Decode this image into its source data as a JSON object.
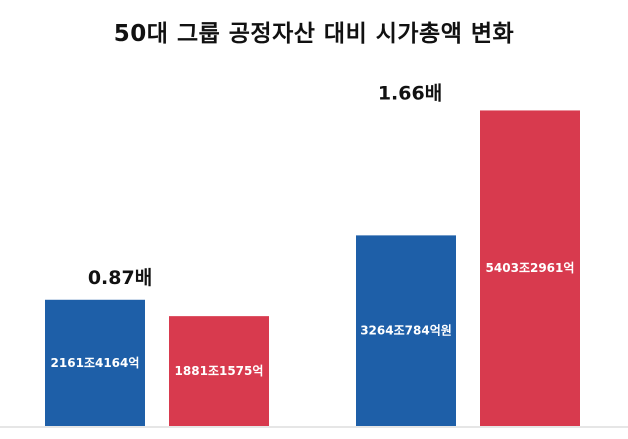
{
  "chart_data": {
    "type": "bar",
    "title": "50대 그룹 공정자산 대비 시가총액 변화",
    "ylim": [
      0,
      6000
    ],
    "grid": false,
    "groups": [
      {
        "ratio_label": "0.87배",
        "bars": [
          {
            "label": "2161조4164억",
            "value": 2161.4164,
            "color": "#1e5fa8"
          },
          {
            "label": "1881조1575억",
            "value": 1881.1575,
            "color": "#d83a4e"
          }
        ]
      },
      {
        "ratio_label": "1.66배",
        "bars": [
          {
            "label": "3264조784억원",
            "value": 3264.0784,
            "color": "#1e5fa8"
          },
          {
            "label": "5403조2961억",
            "value": 5403.2961,
            "color": "#d83a4e"
          }
        ]
      }
    ]
  }
}
